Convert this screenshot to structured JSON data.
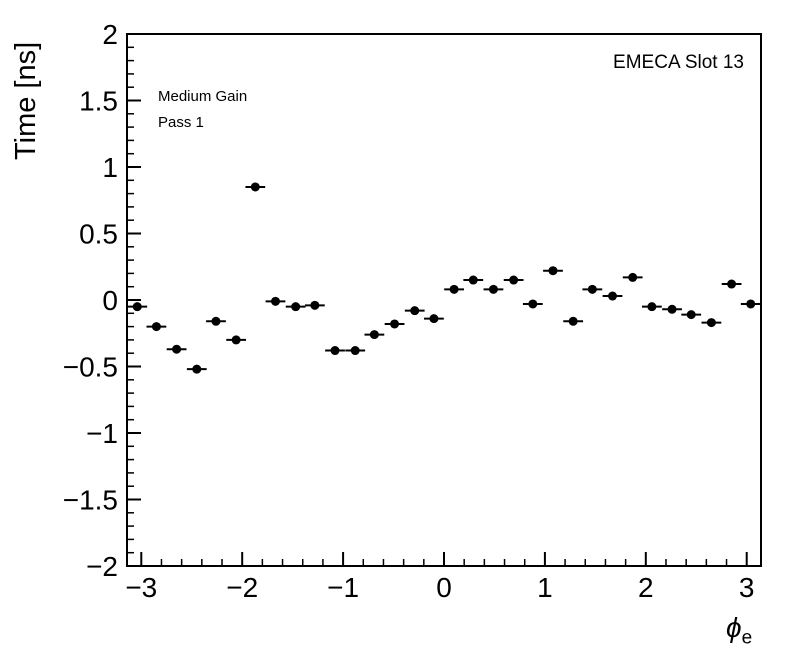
{
  "chart_data": {
    "type": "scatter",
    "title": "",
    "ylabel": "Time [ns]",
    "xlabel_symbol": "ϕ",
    "xlabel_sub": "e",
    "xlim": [
      -3.1416,
      3.1416
    ],
    "ylim": [
      -2,
      2
    ],
    "grid": false,
    "legend": false,
    "x_ticks": {
      "values": [
        -3,
        -2,
        -1,
        0,
        1,
        2,
        3
      ],
      "labels": [
        "−3",
        "−2",
        "−1",
        "0",
        "1",
        "2",
        "3"
      ],
      "minor_step": 0.2
    },
    "y_ticks": {
      "values": [
        -2,
        -1.5,
        -1,
        -0.5,
        0,
        0.5,
        1,
        1.5,
        2
      ],
      "labels": [
        "−2",
        "−1.5",
        "−1",
        "−0.5",
        "0",
        "0.5",
        "1",
        "1.5",
        "2"
      ],
      "minor_step": 0.1
    },
    "annotations": [
      {
        "text": "EMECA Slot 13",
        "position": "top-right-inside"
      },
      {
        "text": "Medium Gain",
        "position": "top-left-inside"
      },
      {
        "text": "Pass 1",
        "position": "top-left-inside"
      }
    ],
    "series": [
      {
        "name": "time-vs-phi",
        "marker": "filled-circle",
        "color": "#000000",
        "xerr": 0.098,
        "x": [
          -3.04,
          -2.85,
          -2.65,
          -2.45,
          -2.26,
          -2.06,
          -1.87,
          -1.67,
          -1.47,
          -1.28,
          -1.08,
          -0.88,
          -0.69,
          -0.49,
          -0.29,
          -0.1,
          0.1,
          0.29,
          0.49,
          0.69,
          0.88,
          1.08,
          1.28,
          1.47,
          1.67,
          1.87,
          2.06,
          2.26,
          2.45,
          2.65,
          2.85,
          3.04
        ],
        "y": [
          -0.05,
          -0.2,
          -0.37,
          -0.52,
          -0.16,
          -0.3,
          0.85,
          -0.01,
          -0.05,
          -0.04,
          -0.38,
          -0.38,
          -0.26,
          -0.18,
          -0.08,
          -0.14,
          0.08,
          0.15,
          0.08,
          0.15,
          -0.03,
          0.22,
          -0.16,
          0.08,
          0.03,
          0.17,
          -0.05,
          -0.07,
          -0.11,
          -0.17,
          0.12,
          -0.03
        ]
      }
    ]
  }
}
